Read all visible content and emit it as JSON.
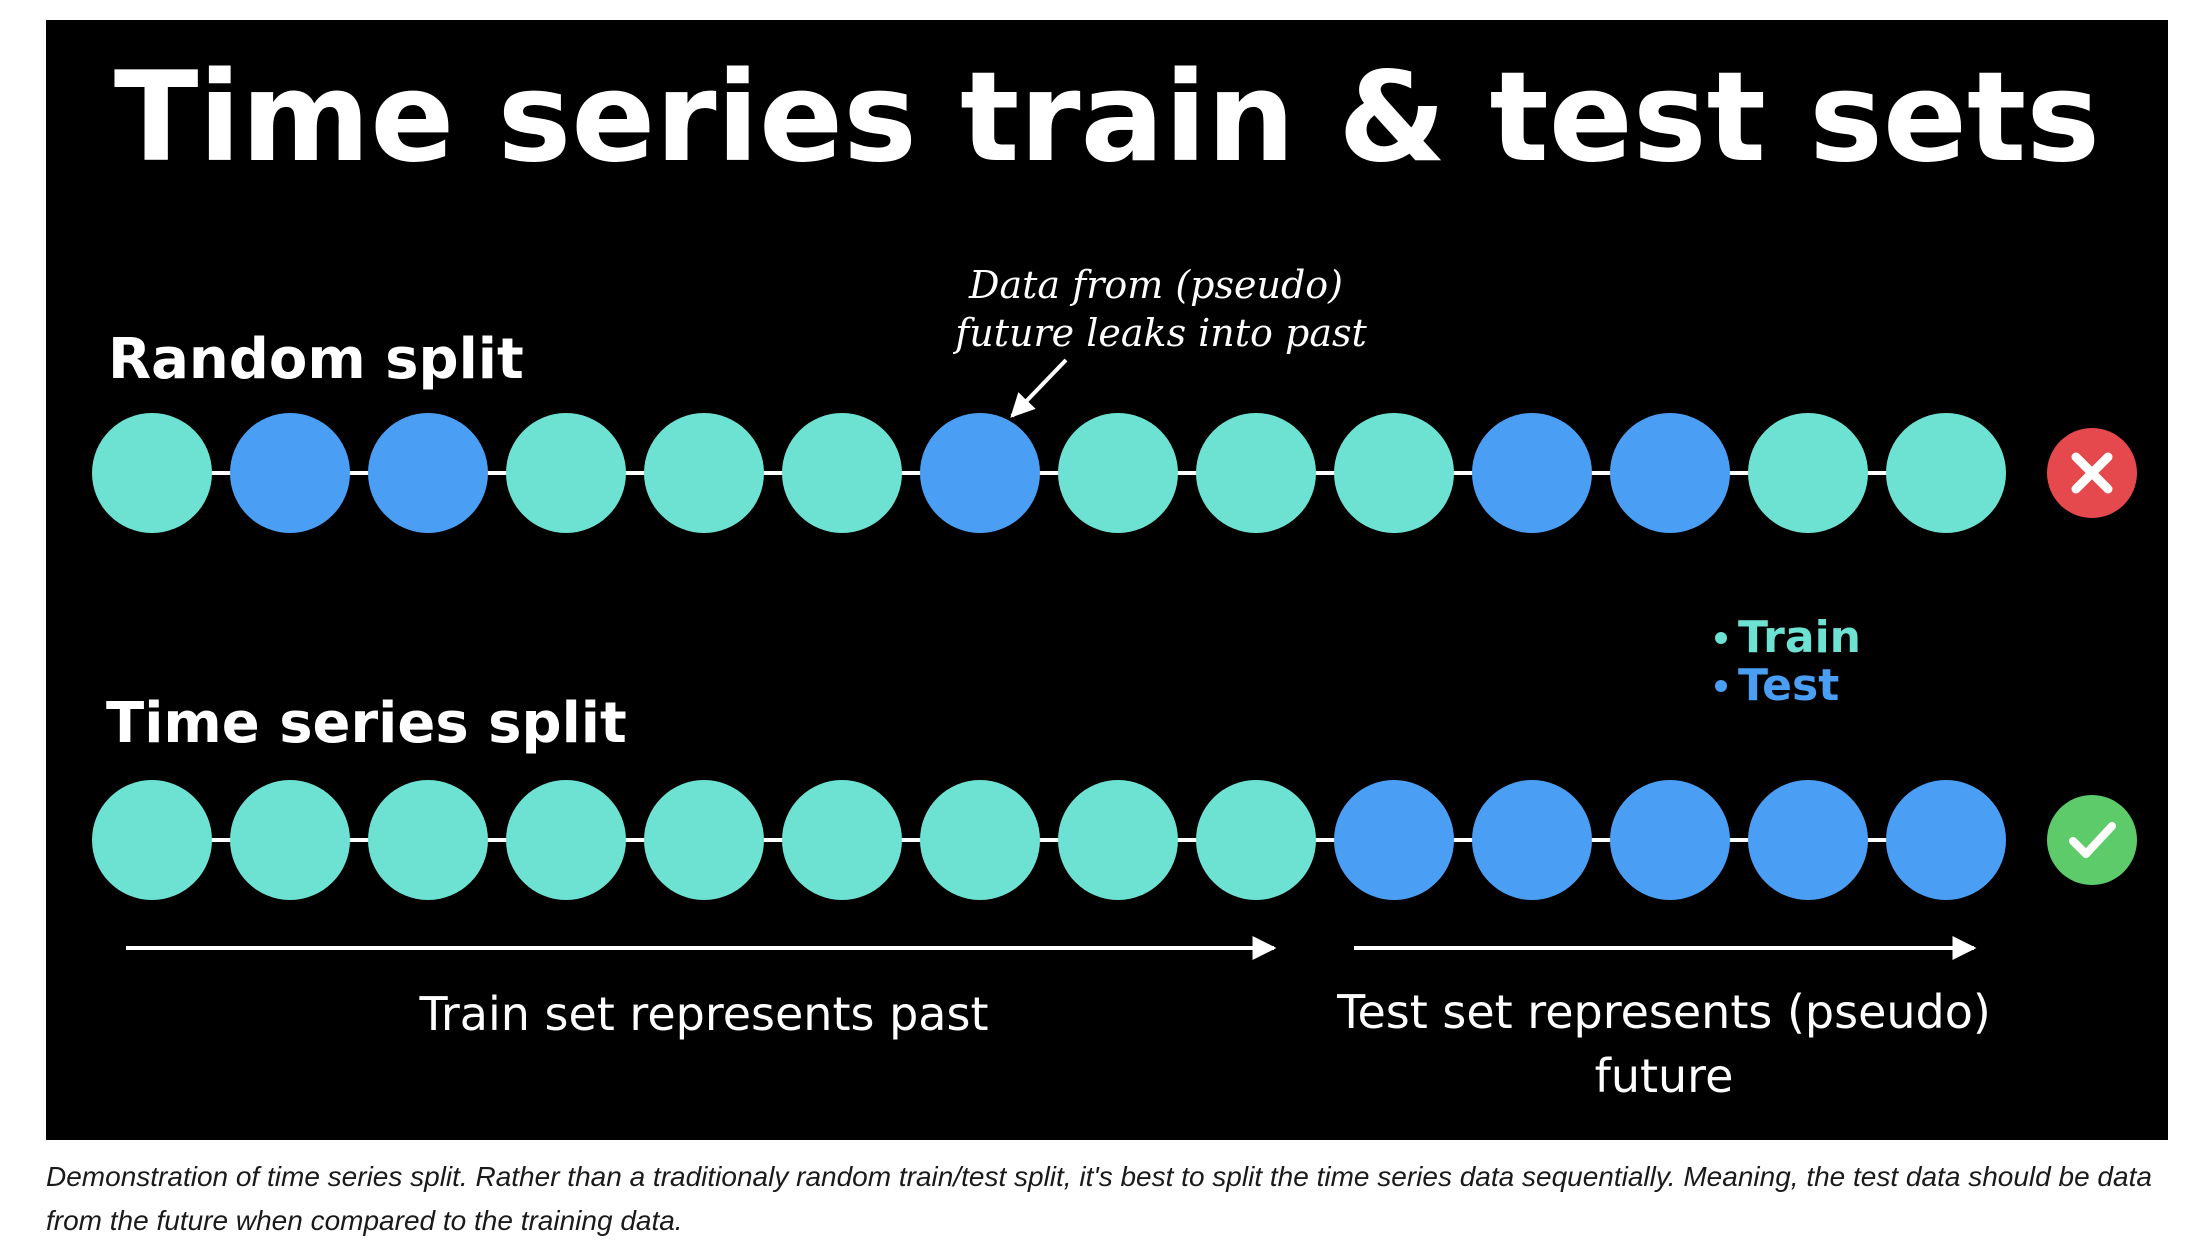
{
  "title": "Time series train & test sets",
  "colors": {
    "background": "#000000",
    "train": "#6EE2D2",
    "test": "#4A9FF5",
    "connector": "#ffffff",
    "text": "#ffffff",
    "bad": "#E5484D",
    "good": "#5DCB6A"
  },
  "random_split": {
    "label": "Random split",
    "sequence": [
      "train",
      "test",
      "test",
      "train",
      "train",
      "train",
      "test",
      "train",
      "train",
      "train",
      "test",
      "test",
      "train",
      "train"
    ],
    "status_icon": "cross-icon",
    "annotation_line1": "Data from (pseudo)",
    "annotation_line2": "future leaks into past"
  },
  "time_series_split": {
    "label": "Time series split",
    "sequence": [
      "train",
      "train",
      "train",
      "train",
      "train",
      "train",
      "train",
      "train",
      "train",
      "test",
      "test",
      "test",
      "test",
      "test"
    ],
    "status_icon": "check-icon"
  },
  "legend": {
    "train": "Train",
    "test": "Test"
  },
  "train_range_label": "Train set represents past",
  "test_range_label_line1": "Test set represents (pseudo)",
  "test_range_label_line2": "future",
  "caption": "Demonstration of time series split. Rather than a traditionaly random train/test split, it's best to split the time series data sequentially. Meaning, the test data should be data from the future when compared to the training data."
}
